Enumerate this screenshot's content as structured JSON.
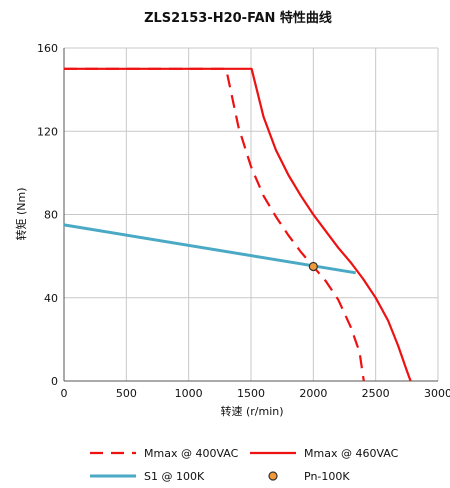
{
  "chart_data": {
    "type": "line",
    "title": "ZLS2153-H20-FAN 特性曲线",
    "xlabel": "转速 (r/min)",
    "ylabel": "转矩 (Nm)",
    "xlim": [
      0,
      3000
    ],
    "ylim": [
      0,
      160
    ],
    "xticks": [
      0,
      500,
      1000,
      1500,
      2000,
      2500,
      3000
    ],
    "yticks": [
      0,
      40,
      80,
      120,
      160
    ],
    "grid": true,
    "legend_position": "bottom",
    "series": [
      {
        "name": "Mmax @ 400VAC",
        "style": "dashed",
        "color": "#ee1111",
        "points": [
          [
            0,
            150
          ],
          [
            1300,
            150
          ],
          [
            1400,
            122
          ],
          [
            1500,
            103
          ],
          [
            1600,
            89
          ],
          [
            1700,
            79
          ],
          [
            1800,
            70
          ],
          [
            1900,
            62
          ],
          [
            2000,
            55
          ],
          [
            2100,
            48
          ],
          [
            2200,
            39
          ],
          [
            2300,
            26
          ],
          [
            2370,
            14
          ],
          [
            2405,
            0
          ]
        ]
      },
      {
        "name": "Mmax @ 460VAC",
        "style": "solid",
        "color": "#ee1111",
        "points": [
          [
            0,
            150
          ],
          [
            1505,
            150
          ],
          [
            1600,
            127
          ],
          [
            1700,
            111
          ],
          [
            1800,
            99
          ],
          [
            1900,
            89
          ],
          [
            2000,
            80
          ],
          [
            2100,
            72
          ],
          [
            2200,
            64
          ],
          [
            2300,
            57
          ],
          [
            2400,
            49
          ],
          [
            2500,
            40
          ],
          [
            2600,
            29
          ],
          [
            2680,
            17
          ],
          [
            2750,
            5
          ],
          [
            2780,
            0
          ]
        ]
      },
      {
        "name": "S1 @ 100K",
        "style": "solid",
        "color": "#4aa9c4",
        "points": [
          [
            0,
            75
          ],
          [
            2340,
            52
          ]
        ]
      },
      {
        "name": "Pn-100K",
        "style": "marker",
        "color": "#f29a3a",
        "points": [
          [
            2000,
            55
          ]
        ]
      }
    ]
  }
}
